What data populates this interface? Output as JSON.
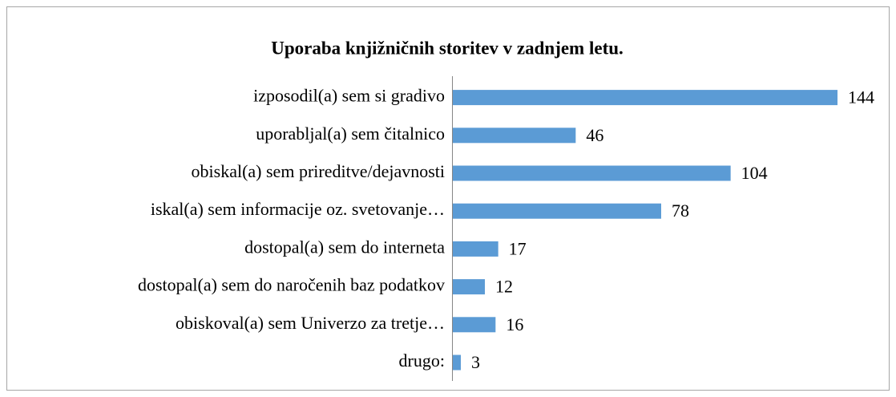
{
  "chart_data": {
    "type": "bar",
    "orientation": "horizontal",
    "title": "Uporaba knjižničnih storitev v zadnjem letu.",
    "categories": [
      "izposodil(a) sem si gradivo",
      "uporabljal(a) sem čitalnico",
      "obiskal(a) sem prireditve/dejavnosti",
      "iskal(a) sem informacije oz. svetovanje…",
      "dostopal(a) sem do interneta",
      "dostopal(a) sem do naročenih baz podatkov",
      "obiskoval(a) sem Univerzo za tretje…",
      "drugo:"
    ],
    "values": [
      144,
      46,
      104,
      78,
      17,
      12,
      16,
      3
    ],
    "color": "#5b9bd5"
  }
}
